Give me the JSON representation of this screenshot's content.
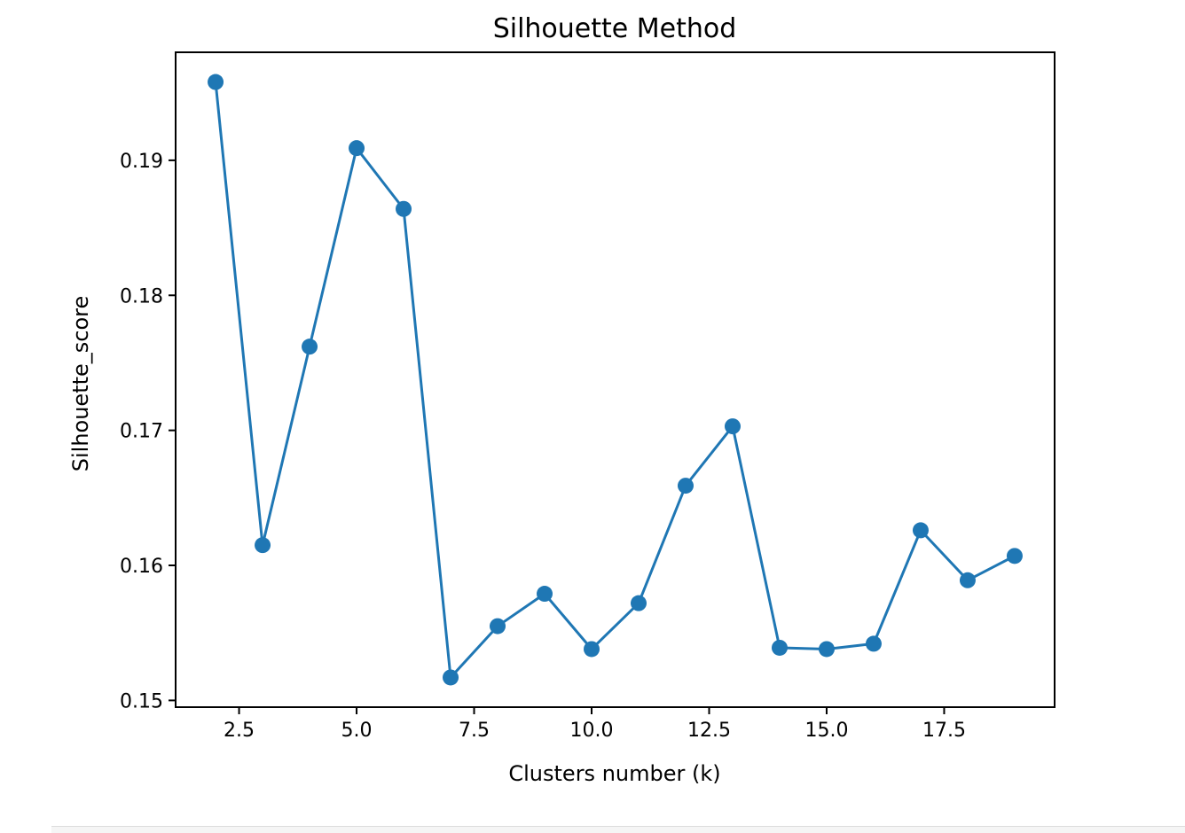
{
  "chart_data": {
    "type": "line",
    "title": "Silhouette Method",
    "xlabel": "Clusters number (k)",
    "ylabel": "Silhouette_score",
    "x": [
      2,
      3,
      4,
      5,
      6,
      7,
      8,
      9,
      10,
      11,
      12,
      13,
      14,
      15,
      16,
      17,
      18,
      19
    ],
    "series": [
      {
        "name": "silhouette_score",
        "values": [
          0.1958,
          0.1615,
          0.1762,
          0.1909,
          0.1864,
          0.1517,
          0.1555,
          0.1579,
          0.1538,
          0.1572,
          0.1659,
          0.1703,
          0.1539,
          0.1538,
          0.1542,
          0.1626,
          0.1589,
          0.1607
        ],
        "marker": "circle"
      }
    ],
    "xlim": [
      1.15,
      19.85
    ],
    "ylim": [
      0.1495,
      0.198
    ],
    "xticks": [
      2.5,
      5.0,
      7.5,
      10.0,
      12.5,
      15.0,
      17.5
    ],
    "xtick_labels": [
      "2.5",
      "5.0",
      "7.5",
      "10.0",
      "12.5",
      "15.0",
      "17.5"
    ],
    "yticks": [
      0.15,
      0.16,
      0.17,
      0.18,
      0.19
    ],
    "ytick_labels": [
      "0.15",
      "0.16",
      "0.17",
      "0.18",
      "0.19"
    ],
    "grid": false,
    "colors": {
      "line": "#1f77b4",
      "axes": "#000000",
      "text": "#000000",
      "background": "#ffffff"
    }
  }
}
